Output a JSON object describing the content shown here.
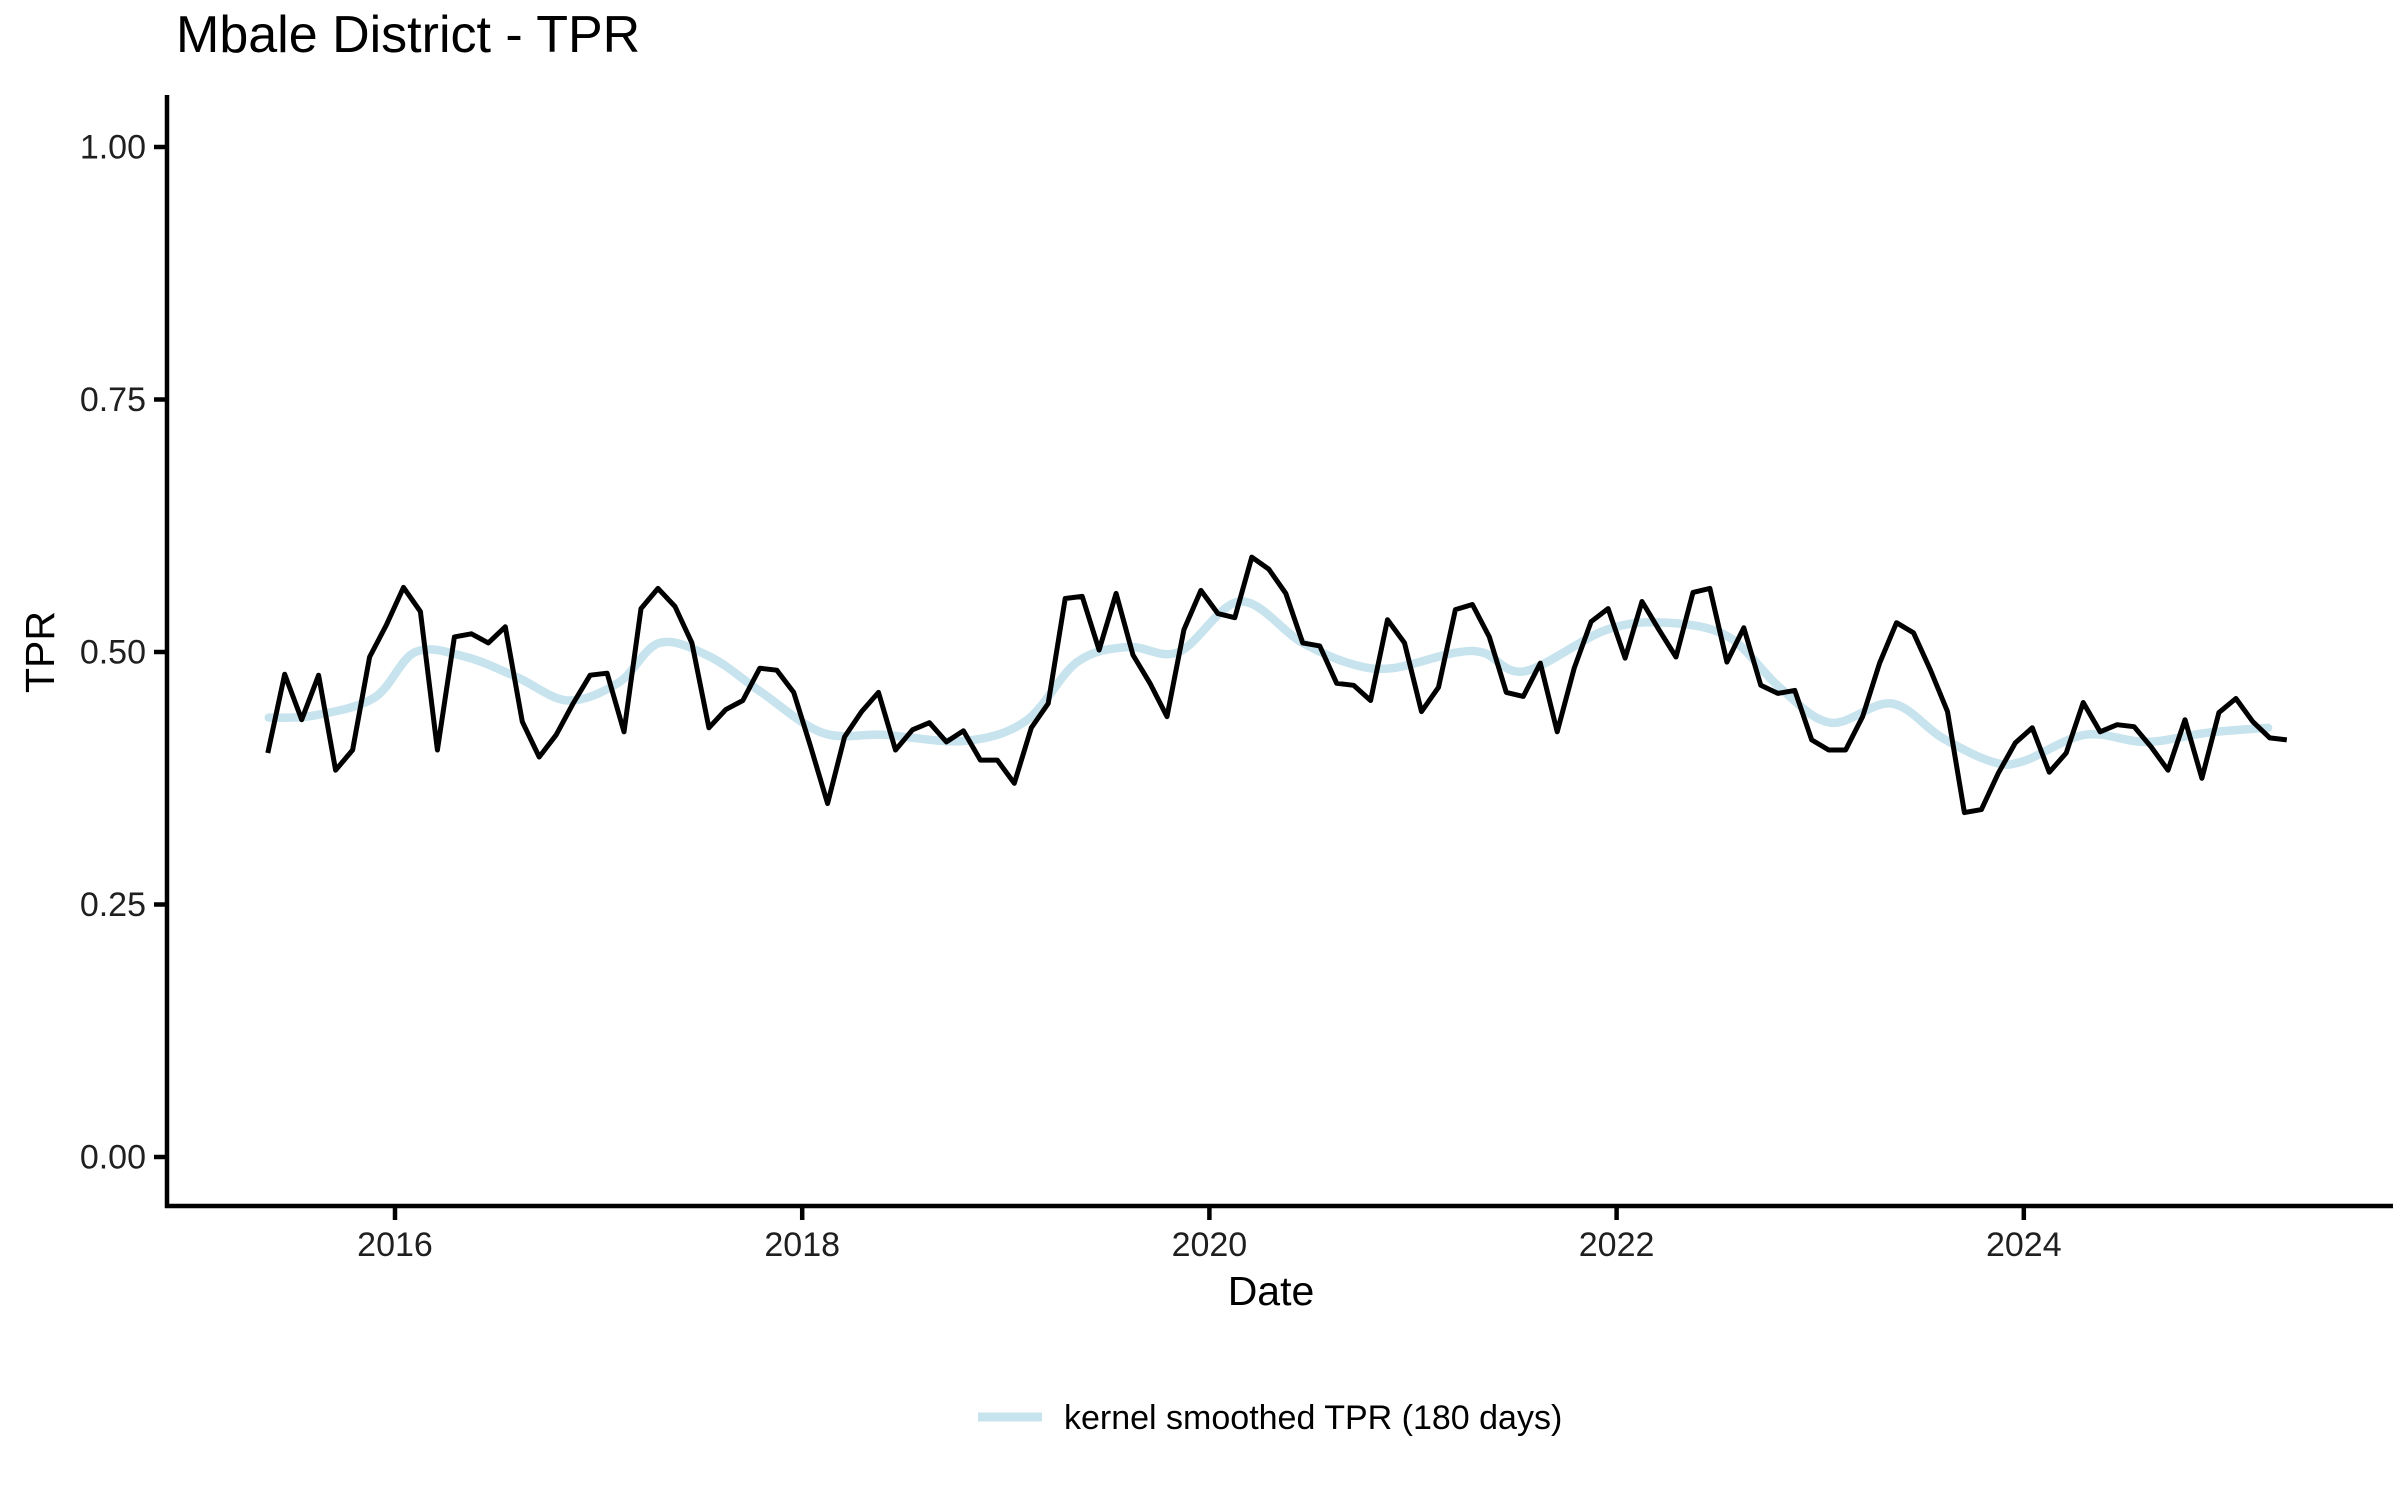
{
  "chart_data": {
    "type": "line",
    "title": "Mbale District - TPR",
    "xlabel": "Date",
    "ylabel": "TPR",
    "x_ticks": [
      2016,
      2018,
      2020,
      2022,
      2024
    ],
    "y_ticks": [
      0.0,
      0.25,
      0.5,
      0.75,
      1.0
    ],
    "y_tick_labels": [
      "0.00",
      "0.25",
      "0.50",
      "0.75",
      "1.00"
    ],
    "x_range_years": [
      2015.1,
      2025.8
    ],
    "y_range": [
      0.0,
      1.0
    ],
    "grid": "off",
    "legend": {
      "position": "bottom",
      "label": "kernel smoothed TPR (180 days)"
    },
    "series": [
      {
        "name": "TPR",
        "color": "#000000",
        "width": 5,
        "start_year": 2015,
        "start_month": 5,
        "frequency": "monthly",
        "values": [
          0.4,
          0.478,
          0.433,
          0.477,
          0.383,
          0.403,
          0.495,
          0.527,
          0.564,
          0.54,
          0.403,
          0.515,
          0.518,
          0.509,
          0.525,
          0.431,
          0.396,
          0.418,
          0.449,
          0.477,
          0.479,
          0.421,
          0.543,
          0.563,
          0.545,
          0.509,
          0.425,
          0.443,
          0.452,
          0.484,
          0.482,
          0.46,
          0.406,
          0.35,
          0.416,
          0.441,
          0.46,
          0.403,
          0.423,
          0.43,
          0.411,
          0.422,
          0.393,
          0.393,
          0.37,
          0.425,
          0.449,
          0.553,
          0.555,
          0.502,
          0.558,
          0.497,
          0.469,
          0.436,
          0.522,
          0.561,
          0.538,
          0.534,
          0.594,
          0.582,
          0.558,
          0.509,
          0.506,
          0.469,
          0.467,
          0.452,
          0.532,
          0.509,
          0.441,
          0.465,
          0.542,
          0.547,
          0.515,
          0.46,
          0.456,
          0.489,
          0.421,
          0.484,
          0.53,
          0.543,
          0.494,
          0.55,
          0.522,
          0.495,
          0.559,
          0.563,
          0.49,
          0.524,
          0.467,
          0.459,
          0.462,
          0.413,
          0.403,
          0.403,
          0.436,
          0.489,
          0.529,
          0.519,
          0.482,
          0.441,
          0.341,
          0.344,
          0.38,
          0.41,
          0.425,
          0.381,
          0.4,
          0.45,
          0.421,
          0.428,
          0.426,
          0.406,
          0.383,
          0.433,
          0.375,
          0.44,
          0.454,
          0.431,
          0.415,
          0.413
        ]
      },
      {
        "name": "kernel smoothed TPR (180 days)",
        "color": "#c7e3ee",
        "width": 8.5,
        "points": [
          [
            2015.38,
            0.435
          ],
          [
            2015.6,
            0.437
          ],
          [
            2015.9,
            0.455
          ],
          [
            2016.1,
            0.5
          ],
          [
            2016.35,
            0.495
          ],
          [
            2016.6,
            0.475
          ],
          [
            2016.85,
            0.452
          ],
          [
            2017.1,
            0.47
          ],
          [
            2017.3,
            0.509
          ],
          [
            2017.55,
            0.495
          ],
          [
            2017.8,
            0.46
          ],
          [
            2018.1,
            0.42
          ],
          [
            2018.4,
            0.418
          ],
          [
            2018.8,
            0.412
          ],
          [
            2019.1,
            0.432
          ],
          [
            2019.35,
            0.49
          ],
          [
            2019.6,
            0.505
          ],
          [
            2019.85,
            0.5
          ],
          [
            2020.15,
            0.55
          ],
          [
            2020.45,
            0.51
          ],
          [
            2020.7,
            0.488
          ],
          [
            2020.9,
            0.484
          ],
          [
            2021.2,
            0.499
          ],
          [
            2021.35,
            0.499
          ],
          [
            2021.55,
            0.481
          ],
          [
            2021.95,
            0.522
          ],
          [
            2022.25,
            0.529
          ],
          [
            2022.55,
            0.515
          ],
          [
            2022.8,
            0.465
          ],
          [
            2023.05,
            0.43
          ],
          [
            2023.35,
            0.449
          ],
          [
            2023.6,
            0.415
          ],
          [
            2023.85,
            0.391
          ],
          [
            2024.0,
            0.392
          ],
          [
            2024.3,
            0.418
          ],
          [
            2024.6,
            0.411
          ],
          [
            2024.9,
            0.42
          ],
          [
            2025.2,
            0.425
          ]
        ]
      }
    ]
  }
}
